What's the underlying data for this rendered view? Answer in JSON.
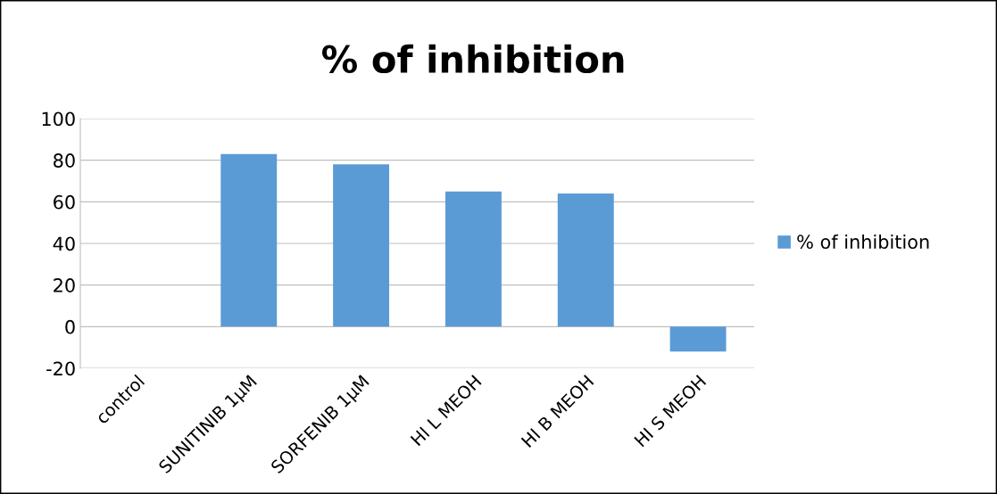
{
  "chart_data": {
    "type": "bar",
    "title": "% of inhibition",
    "categories": [
      "control",
      "SUNITINIB 1µM",
      "SORFENIB 1µM",
      "HI L MEOH",
      "HI B MEOH",
      "HI S MEOH"
    ],
    "series": [
      {
        "name": "% of inhibition",
        "color": "#5b9bd5",
        "values": [
          0,
          83,
          78,
          65,
          64,
          -12
        ]
      }
    ],
    "ylim": [
      -20,
      100
    ],
    "yticks": [
      -20,
      0,
      20,
      40,
      60,
      80,
      100
    ],
    "grid": "y",
    "legend": "right"
  }
}
